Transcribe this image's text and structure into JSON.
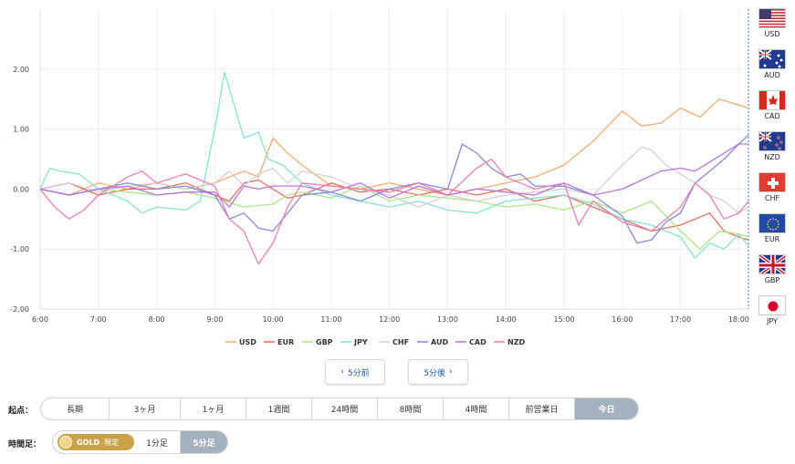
{
  "chart_data": {
    "type": "line",
    "title": "",
    "xlabel": "",
    "ylabel": "",
    "x_ticks": [
      "6:00",
      "7:00",
      "8:00",
      "9:00",
      "10:00",
      "11:00",
      "12:00",
      "13:00",
      "14:00",
      "15:00",
      "16:00",
      "17:00",
      "18:00"
    ],
    "y_ticks": [
      "2.00",
      "1.00",
      "0.00",
      "-1.00",
      "-2.00"
    ],
    "xlim": [
      "6:00",
      "18:10"
    ],
    "ylim": [
      -2.0,
      3.0
    ],
    "grid": true,
    "legend_position": "bottom",
    "series": [
      {
        "name": "USD",
        "color": "#f0a868",
        "points": [
          [
            "6:00",
            0.0
          ],
          [
            "6:30",
            -0.1
          ],
          [
            "7:00",
            0.1
          ],
          [
            "7:30",
            0.0
          ],
          [
            "8:00",
            0.1
          ],
          [
            "8:30",
            0.0
          ],
          [
            "9:00",
            0.1
          ],
          [
            "9:30",
            0.3
          ],
          [
            "9:45",
            0.2
          ],
          [
            "10:00",
            0.85
          ],
          [
            "10:15",
            0.6
          ],
          [
            "10:30",
            0.4
          ],
          [
            "11:00",
            0.05
          ],
          [
            "11:30",
            0.0
          ],
          [
            "12:00",
            0.1
          ],
          [
            "12:30",
            0.0
          ],
          [
            "13:00",
            -0.1
          ],
          [
            "13:30",
            0.0
          ],
          [
            "14:00",
            0.1
          ],
          [
            "14:30",
            0.2
          ],
          [
            "15:00",
            0.4
          ],
          [
            "15:30",
            0.8
          ],
          [
            "16:00",
            1.3
          ],
          [
            "16:20",
            1.05
          ],
          [
            "16:40",
            1.1
          ],
          [
            "17:00",
            1.35
          ],
          [
            "17:20",
            1.2
          ],
          [
            "17:40",
            1.5
          ],
          [
            "18:00",
            1.4
          ],
          [
            "18:10",
            1.35
          ]
        ]
      },
      {
        "name": "EUR",
        "color": "#e8655a",
        "points": [
          [
            "6:00",
            0.0
          ],
          [
            "6:30",
            0.1
          ],
          [
            "7:00",
            -0.1
          ],
          [
            "7:30",
            0.0
          ],
          [
            "8:00",
            0.0
          ],
          [
            "8:30",
            0.1
          ],
          [
            "9:00",
            -0.1
          ],
          [
            "9:15",
            -0.2
          ],
          [
            "9:30",
            0.1
          ],
          [
            "9:45",
            0.15
          ],
          [
            "10:00",
            0.0
          ],
          [
            "10:15",
            -0.15
          ],
          [
            "10:30",
            -0.1
          ],
          [
            "11:00",
            0.1
          ],
          [
            "11:30",
            -0.05
          ],
          [
            "12:00",
            0.0
          ],
          [
            "12:30",
            -0.1
          ],
          [
            "13:00",
            0.0
          ],
          [
            "13:30",
            -0.1
          ],
          [
            "14:00",
            0.0
          ],
          [
            "14:30",
            -0.2
          ],
          [
            "15:00",
            -0.1
          ],
          [
            "15:30",
            -0.3
          ],
          [
            "16:00",
            -0.5
          ],
          [
            "16:30",
            -0.7
          ],
          [
            "17:00",
            -0.6
          ],
          [
            "17:30",
            -0.4
          ],
          [
            "17:45",
            -0.7
          ],
          [
            "18:00",
            -0.8
          ],
          [
            "18:10",
            -0.85
          ]
        ]
      },
      {
        "name": "GBP",
        "color": "#a3e87c",
        "points": [
          [
            "6:00",
            0.0
          ],
          [
            "6:30",
            -0.1
          ],
          [
            "7:00",
            0.0
          ],
          [
            "7:30",
            -0.05
          ],
          [
            "8:00",
            -0.1
          ],
          [
            "8:30",
            -0.05
          ],
          [
            "9:00",
            -0.15
          ],
          [
            "9:30",
            -0.3
          ],
          [
            "10:00",
            -0.25
          ],
          [
            "10:15",
            -0.1
          ],
          [
            "10:30",
            -0.05
          ],
          [
            "11:00",
            -0.15
          ],
          [
            "11:30",
            0.05
          ],
          [
            "12:00",
            -0.2
          ],
          [
            "12:30",
            -0.1
          ],
          [
            "13:00",
            -0.15
          ],
          [
            "13:30",
            -0.2
          ],
          [
            "14:00",
            -0.3
          ],
          [
            "14:30",
            -0.25
          ],
          [
            "15:00",
            -0.35
          ],
          [
            "15:30",
            -0.2
          ],
          [
            "16:00",
            -0.4
          ],
          [
            "16:30",
            -0.2
          ],
          [
            "17:00",
            -0.7
          ],
          [
            "17:20",
            -1.0
          ],
          [
            "17:40",
            -0.7
          ],
          [
            "18:00",
            -0.75
          ],
          [
            "18:10",
            -0.8
          ]
        ]
      },
      {
        "name": "JPY",
        "color": "#7fe3cf",
        "points": [
          [
            "6:00",
            0.0
          ],
          [
            "6:10",
            0.35
          ],
          [
            "6:20",
            0.3
          ],
          [
            "6:40",
            0.25
          ],
          [
            "7:00",
            0.0
          ],
          [
            "7:30",
            -0.2
          ],
          [
            "7:45",
            -0.4
          ],
          [
            "8:00",
            -0.3
          ],
          [
            "8:30",
            -0.35
          ],
          [
            "8:45",
            -0.2
          ],
          [
            "9:00",
            1.0
          ],
          [
            "9:10",
            1.95
          ],
          [
            "9:20",
            1.4
          ],
          [
            "9:30",
            0.85
          ],
          [
            "9:45",
            0.95
          ],
          [
            "9:55",
            0.5
          ],
          [
            "10:10",
            0.4
          ],
          [
            "10:30",
            0.1
          ],
          [
            "11:00",
            -0.1
          ],
          [
            "11:30",
            -0.2
          ],
          [
            "12:00",
            -0.3
          ],
          [
            "12:30",
            -0.2
          ],
          [
            "13:00",
            -0.35
          ],
          [
            "13:30",
            -0.4
          ],
          [
            "14:00",
            -0.2
          ],
          [
            "14:30",
            -0.15
          ],
          [
            "15:00",
            -0.1
          ],
          [
            "15:30",
            -0.25
          ],
          [
            "16:00",
            -0.5
          ],
          [
            "16:30",
            -0.6
          ],
          [
            "17:00",
            -0.8
          ],
          [
            "17:15",
            -1.15
          ],
          [
            "17:30",
            -0.9
          ],
          [
            "17:45",
            -1.0
          ],
          [
            "18:00",
            -0.75
          ],
          [
            "18:10",
            -0.95
          ]
        ]
      },
      {
        "name": "CHF",
        "color": "#d0d0d0",
        "points": [
          [
            "6:00",
            0.0
          ],
          [
            "6:30",
            0.1
          ],
          [
            "7:00",
            -0.05
          ],
          [
            "7:30",
            0.05
          ],
          [
            "8:00",
            0.1
          ],
          [
            "8:30",
            0.0
          ],
          [
            "9:00",
            0.1
          ],
          [
            "9:15",
            0.3
          ],
          [
            "9:30",
            0.05
          ],
          [
            "9:45",
            0.25
          ],
          [
            "10:00",
            0.35
          ],
          [
            "10:15",
            0.1
          ],
          [
            "10:30",
            0.3
          ],
          [
            "11:00",
            0.2
          ],
          [
            "11:30",
            0.0
          ],
          [
            "12:00",
            -0.1
          ],
          [
            "12:30",
            -0.3
          ],
          [
            "13:00",
            -0.1
          ],
          [
            "13:30",
            -0.2
          ],
          [
            "14:00",
            -0.1
          ],
          [
            "14:30",
            -0.05
          ],
          [
            "15:00",
            0.0
          ],
          [
            "15:30",
            -0.1
          ],
          [
            "16:00",
            0.4
          ],
          [
            "16:20",
            0.7
          ],
          [
            "16:30",
            0.65
          ],
          [
            "16:45",
            0.4
          ],
          [
            "17:00",
            0.25
          ],
          [
            "17:15",
            0.1
          ],
          [
            "17:30",
            -0.1
          ],
          [
            "17:45",
            -0.2
          ],
          [
            "18:00",
            -0.4
          ],
          [
            "18:10",
            -0.3
          ]
        ]
      },
      {
        "name": "AUD",
        "color": "#7b84d8",
        "points": [
          [
            "6:00",
            0.0
          ],
          [
            "6:30",
            -0.1
          ],
          [
            "7:00",
            0.0
          ],
          [
            "7:30",
            0.1
          ],
          [
            "8:00",
            0.0
          ],
          [
            "8:30",
            0.05
          ],
          [
            "9:00",
            -0.1
          ],
          [
            "9:15",
            -0.5
          ],
          [
            "9:30",
            -0.4
          ],
          [
            "9:45",
            -0.65
          ],
          [
            "10:00",
            -0.7
          ],
          [
            "10:15",
            -0.4
          ],
          [
            "10:30",
            -0.1
          ],
          [
            "11:00",
            -0.05
          ],
          [
            "11:30",
            -0.2
          ],
          [
            "12:00",
            0.0
          ],
          [
            "12:30",
            0.1
          ],
          [
            "13:00",
            0.0
          ],
          [
            "13:15",
            0.75
          ],
          [
            "13:30",
            0.6
          ],
          [
            "13:45",
            0.35
          ],
          [
            "14:00",
            0.2
          ],
          [
            "14:15",
            0.25
          ],
          [
            "14:30",
            0.05
          ],
          [
            "15:00",
            0.05
          ],
          [
            "15:30",
            -0.1
          ],
          [
            "16:00",
            -0.45
          ],
          [
            "16:15",
            -0.9
          ],
          [
            "16:30",
            -0.85
          ],
          [
            "16:45",
            -0.55
          ],
          [
            "17:00",
            -0.4
          ],
          [
            "17:15",
            0.1
          ],
          [
            "17:30",
            0.3
          ],
          [
            "17:45",
            0.5
          ],
          [
            "18:00",
            0.75
          ],
          [
            "18:10",
            0.9
          ]
        ]
      },
      {
        "name": "CAD",
        "color": "#b86ed8",
        "points": [
          [
            "6:00",
            0.0
          ],
          [
            "6:30",
            -0.1
          ],
          [
            "7:00",
            0.0
          ],
          [
            "7:30",
            0.05
          ],
          [
            "8:00",
            -0.1
          ],
          [
            "8:30",
            -0.05
          ],
          [
            "9:00",
            -0.05
          ],
          [
            "9:15",
            -0.3
          ],
          [
            "9:30",
            0.05
          ],
          [
            "9:45",
            0.0
          ],
          [
            "10:00",
            0.05
          ],
          [
            "10:30",
            0.05
          ],
          [
            "11:00",
            -0.05
          ],
          [
            "11:30",
            0.1
          ],
          [
            "12:00",
            -0.15
          ],
          [
            "12:30",
            0.05
          ],
          [
            "13:00",
            -0.1
          ],
          [
            "13:30",
            0.0
          ],
          [
            "14:00",
            -0.05
          ],
          [
            "14:30",
            -0.1
          ],
          [
            "15:00",
            0.1
          ],
          [
            "15:30",
            -0.1
          ],
          [
            "16:00",
            0.0
          ],
          [
            "16:20",
            0.15
          ],
          [
            "16:40",
            0.3
          ],
          [
            "17:00",
            0.35
          ],
          [
            "17:15",
            0.3
          ],
          [
            "17:30",
            0.45
          ],
          [
            "17:45",
            0.6
          ],
          [
            "18:00",
            0.75
          ],
          [
            "18:10",
            0.75
          ]
        ]
      },
      {
        "name": "NZD",
        "color": "#ee79a8",
        "points": [
          [
            "6:00",
            0.0
          ],
          [
            "6:15",
            -0.3
          ],
          [
            "6:30",
            -0.5
          ],
          [
            "6:45",
            -0.35
          ],
          [
            "7:00",
            -0.1
          ],
          [
            "7:30",
            0.2
          ],
          [
            "7:45",
            0.3
          ],
          [
            "8:00",
            0.1
          ],
          [
            "8:30",
            0.25
          ],
          [
            "9:00",
            0.05
          ],
          [
            "9:15",
            -0.5
          ],
          [
            "9:30",
            -0.7
          ],
          [
            "9:45",
            -1.25
          ],
          [
            "10:00",
            -0.9
          ],
          [
            "10:15",
            -0.3
          ],
          [
            "10:30",
            0.1
          ],
          [
            "11:00",
            0.05
          ],
          [
            "11:30",
            0.0
          ],
          [
            "12:00",
            -0.05
          ],
          [
            "12:30",
            0.1
          ],
          [
            "13:00",
            -0.1
          ],
          [
            "13:30",
            0.35
          ],
          [
            "13:45",
            0.5
          ],
          [
            "14:00",
            0.2
          ],
          [
            "14:30",
            0.0
          ],
          [
            "15:00",
            0.1
          ],
          [
            "15:15",
            -0.6
          ],
          [
            "15:30",
            -0.2
          ],
          [
            "16:00",
            -0.55
          ],
          [
            "16:30",
            -0.7
          ],
          [
            "17:00",
            -0.3
          ],
          [
            "17:15",
            0.1
          ],
          [
            "17:30",
            -0.1
          ],
          [
            "17:45",
            -0.5
          ],
          [
            "18:00",
            -0.4
          ],
          [
            "18:10",
            -0.2
          ]
        ]
      }
    ]
  },
  "currency_flags": [
    {
      "code": "USD",
      "icon": "us-flag-icon"
    },
    {
      "code": "AUD",
      "icon": "australia-flag-icon"
    },
    {
      "code": "CAD",
      "icon": "canada-flag-icon"
    },
    {
      "code": "NZD",
      "icon": "new-zealand-flag-icon"
    },
    {
      "code": "CHF",
      "icon": "switzerland-flag-icon"
    },
    {
      "code": "EUR",
      "icon": "eu-flag-icon"
    },
    {
      "code": "GBP",
      "icon": "uk-flag-icon"
    },
    {
      "code": "JPY",
      "icon": "japan-flag-icon"
    }
  ],
  "nav": {
    "prev_label": "5分前",
    "next_label": "5分後",
    "prev_icon": "chevron-left-icon",
    "next_icon": "chevron-right-icon"
  },
  "start_point": {
    "label": "起点：",
    "options": [
      "長期",
      "3ヶ月",
      "1ヶ月",
      "1週間",
      "24時間",
      "8時間",
      "4時間",
      "前営業日",
      "今日"
    ],
    "selected": "今日"
  },
  "timeframe": {
    "label": "時間足：",
    "gold_badge": "GOLD",
    "gold_limited": "限定",
    "options": [
      "1分足",
      "5分足"
    ],
    "selected": "5分足"
  },
  "colors": {
    "accent": "#1a56a6",
    "active_segment": "#a5b1bd",
    "gold": "#c9a24a",
    "grid": "#ececec",
    "right_border": "#3a6fd0"
  }
}
